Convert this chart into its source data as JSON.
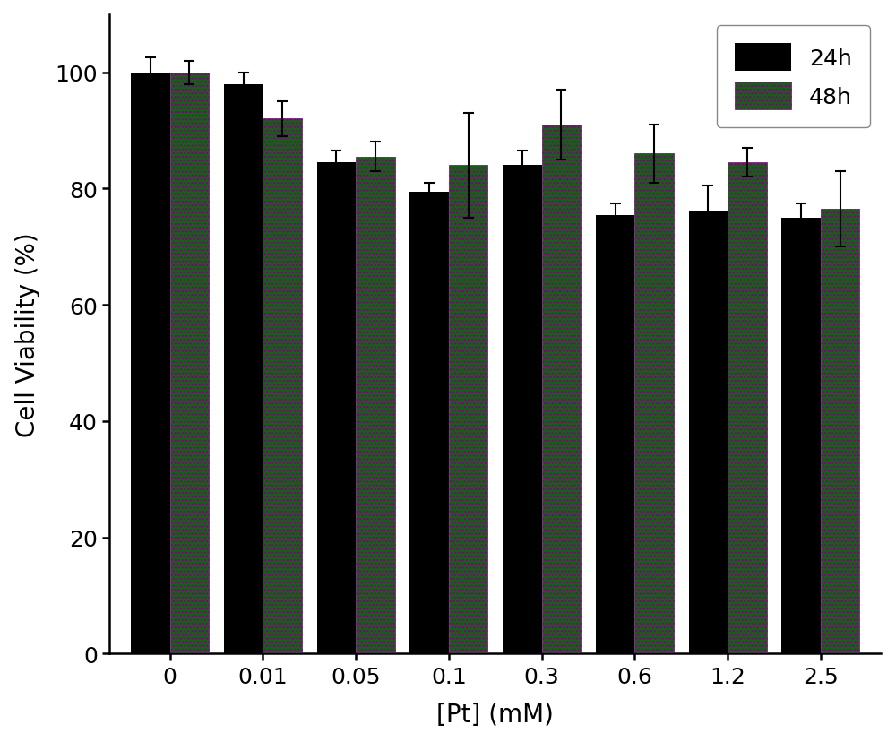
{
  "categories": [
    "0",
    "0.01",
    "0.05",
    "0.1",
    "0.3",
    "0.6",
    "1.2",
    "2.5"
  ],
  "values_24h": [
    100.0,
    98.0,
    84.5,
    79.5,
    84.0,
    75.5,
    76.0,
    75.0
  ],
  "values_48h": [
    100.0,
    92.0,
    85.5,
    84.0,
    91.0,
    86.0,
    84.5,
    76.5
  ],
  "errors_24h": [
    2.5,
    2.0,
    2.0,
    1.5,
    2.5,
    2.0,
    4.5,
    2.5
  ],
  "errors_48h": [
    2.0,
    3.0,
    2.5,
    9.0,
    6.0,
    5.0,
    2.5,
    6.5
  ],
  "color_24h": "#000000",
  "color_48h": "#1a5c1a",
  "xlabel": "[Pt] (mM)",
  "ylabel": "Cell Viability (%)",
  "ylim": [
    0,
    110
  ],
  "yticks": [
    0,
    20,
    40,
    60,
    80,
    100
  ],
  "bar_width": 0.42,
  "legend_labels": [
    "24h",
    "48h"
  ],
  "figsize": [
    10.0,
    8.29
  ],
  "dpi": 100,
  "background_color": "#ffffff",
  "axis_bg_color": "#ffffff"
}
